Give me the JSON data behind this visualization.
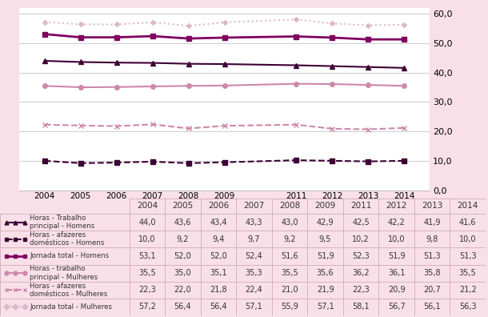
{
  "years": [
    2004,
    2005,
    2006,
    2007,
    2008,
    2009,
    2011,
    2012,
    2013,
    2014
  ],
  "series": {
    "horas_trab_homens": [
      44.0,
      43.6,
      43.4,
      43.3,
      43.0,
      42.9,
      42.5,
      42.2,
      41.9,
      41.6
    ],
    "horas_afaz_homens": [
      10.0,
      9.2,
      9.4,
      9.7,
      9.2,
      9.5,
      10.2,
      10.0,
      9.8,
      10.0
    ],
    "jornada_total_homens": [
      53.1,
      52.0,
      52.0,
      52.4,
      51.6,
      51.9,
      52.3,
      51.9,
      51.3,
      51.3
    ],
    "horas_trab_mulheres": [
      35.5,
      35.0,
      35.1,
      35.3,
      35.5,
      35.6,
      36.2,
      36.1,
      35.8,
      35.5
    ],
    "horas_afaz_mulheres": [
      22.3,
      22.0,
      21.8,
      22.4,
      21.0,
      21.9,
      22.3,
      20.9,
      20.7,
      21.2
    ],
    "jornada_total_mulheres": [
      57.2,
      56.4,
      56.4,
      57.1,
      55.9,
      57.1,
      58.1,
      56.7,
      56.1,
      56.3
    ]
  },
  "colors": {
    "dark_purple": "#3d0035",
    "medium_purple": "#800060",
    "light_pink": "#cc88aa",
    "lighter_pink": "#ddb8cc"
  },
  "bg_color": "#f9e0e8",
  "plot_bg": "#ffffff",
  "table_bg": "#f9e0e8",
  "ylim": [
    0,
    62
  ],
  "yticks": [
    0.0,
    10.0,
    20.0,
    30.0,
    40.0,
    50.0,
    60.0
  ],
  "legend_labels": [
    "Horas - Trabalho\nprincipal - Homens",
    "Horas - afazeres\ndomésticos - Homens",
    "Jornada total - Homens",
    "Horas - trabalho\nprincipal - Mulheres",
    "Horas - afazeres\ndomésticos - Mulheres",
    "Jornada total - Mulheres"
  ],
  "table_values": [
    [
      "44,0",
      "43,6",
      "43,4",
      "43,3",
      "43,0",
      "42,9",
      "42,5",
      "42,2",
      "41,9",
      "41,6"
    ],
    [
      "10,0",
      "9,2",
      "9,4",
      "9,7",
      "9,2",
      "9,5",
      "10,2",
      "10,0",
      "9,8",
      "10,0"
    ],
    [
      "53,1",
      "52,0",
      "52,0",
      "52,4",
      "51,6",
      "51,9",
      "52,3",
      "51,9",
      "51,3",
      "51,3"
    ],
    [
      "35,5",
      "35,0",
      "35,1",
      "35,3",
      "35,5",
      "35,6",
      "36,2",
      "36,1",
      "35,8",
      "35,5"
    ],
    [
      "22,3",
      "22,0",
      "21,8",
      "22,4",
      "21,0",
      "21,9",
      "22,3",
      "20,9",
      "20,7",
      "21,2"
    ],
    [
      "57,2",
      "56,4",
      "56,4",
      "57,1",
      "55,9",
      "57,1",
      "58,1",
      "56,7",
      "56,1",
      "56,3"
    ]
  ]
}
